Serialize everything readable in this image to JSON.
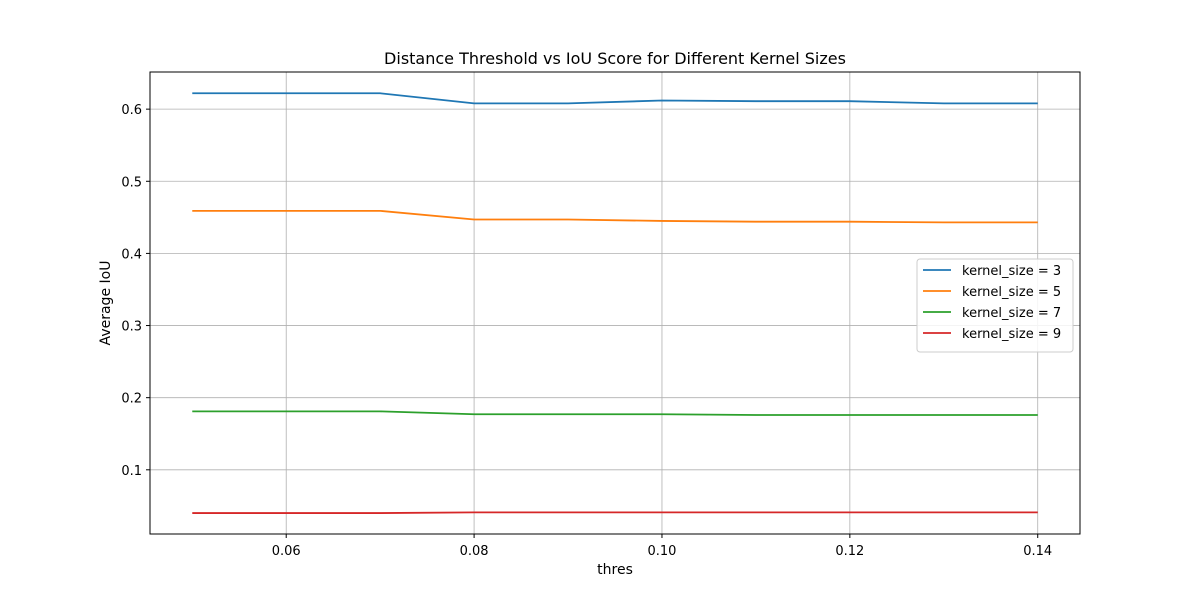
{
  "chart_data": {
    "type": "line",
    "title": "Distance Threshold vs IoU Score for Different Kernel Sizes",
    "xlabel": "thres",
    "ylabel": "Average IoU",
    "x": [
      0.05,
      0.06,
      0.07,
      0.08,
      0.09,
      0.1,
      0.11,
      0.12,
      0.13,
      0.14
    ],
    "xlim": [
      0.0455,
      0.1445
    ],
    "ylim": [
      0.011,
      0.6515
    ],
    "xticks": [
      0.06,
      0.08,
      0.1,
      0.12,
      0.14
    ],
    "xtick_labels": [
      "0.06",
      "0.08",
      "0.10",
      "0.12",
      "0.14"
    ],
    "yticks": [
      0.1,
      0.2,
      0.3,
      0.4,
      0.5,
      0.6
    ],
    "ytick_labels": [
      "0.1",
      "0.2",
      "0.3",
      "0.4",
      "0.5",
      "0.6"
    ],
    "grid": true,
    "legend_position": "center-right",
    "series": [
      {
        "name": "kernel_size = 3",
        "color": "#1f77b4",
        "values": [
          0.622,
          0.622,
          0.622,
          0.608,
          0.608,
          0.612,
          0.611,
          0.611,
          0.608,
          0.608
        ]
      },
      {
        "name": "kernel_size = 5",
        "color": "#ff7f0e",
        "values": [
          0.459,
          0.459,
          0.459,
          0.447,
          0.447,
          0.445,
          0.444,
          0.444,
          0.443,
          0.443
        ]
      },
      {
        "name": "kernel_size = 7",
        "color": "#2ca02c",
        "values": [
          0.181,
          0.181,
          0.181,
          0.177,
          0.177,
          0.177,
          0.176,
          0.176,
          0.176,
          0.176
        ]
      },
      {
        "name": "kernel_size = 9",
        "color": "#d62728",
        "values": [
          0.04,
          0.04,
          0.04,
          0.041,
          0.041,
          0.041,
          0.041,
          0.041,
          0.041,
          0.041
        ]
      }
    ]
  }
}
